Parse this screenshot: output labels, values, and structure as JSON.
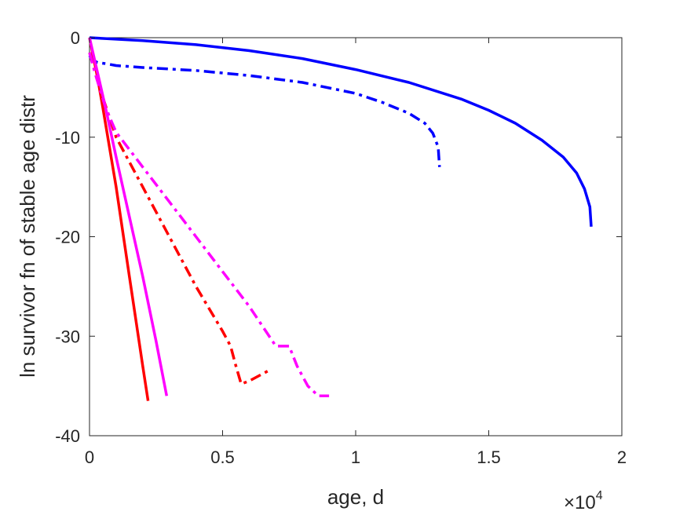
{
  "chart_data": {
    "type": "line",
    "title": "",
    "xlabel": "age, d",
    "ylabel": "ln survivor fn of stable age distr",
    "x_exponent_label": {
      "base": "×10",
      "exponent": "4"
    },
    "xlim": [
      0,
      20000
    ],
    "ylim": [
      -40,
      0
    ],
    "xticks": [
      0,
      5000,
      10000,
      15000,
      20000
    ],
    "xtick_labels": [
      "0",
      "0.5",
      "1",
      "1.5",
      "2"
    ],
    "yticks": [
      0,
      -10,
      -20,
      -30,
      -40
    ],
    "ytick_labels": [
      "0",
      "-10",
      "-20",
      "-30",
      "-40"
    ],
    "grid": false,
    "legend": "none",
    "series": [
      {
        "color": "#0000ff",
        "dash": "solid",
        "x": [
          0,
          2000,
          4000,
          6000,
          8000,
          10000,
          12000,
          14000,
          15000,
          16000,
          17000,
          17800,
          18300,
          18600,
          18800,
          18850
        ],
        "y": [
          0,
          -0.3,
          -0.7,
          -1.3,
          -2.1,
          -3.2,
          -4.5,
          -6.2,
          -7.3,
          -8.6,
          -10.3,
          -12.0,
          -13.6,
          -15.2,
          -17.0,
          -19.0
        ]
      },
      {
        "color": "#0000ff",
        "dash": "dashdot",
        "x": [
          0,
          100,
          300,
          600,
          1000,
          2000,
          4000,
          6000,
          8000,
          10000,
          11000,
          12000,
          12600,
          12900,
          13100,
          13150
        ],
        "y": [
          -1.8,
          -2.2,
          -2.5,
          -2.6,
          -2.8,
          -3.0,
          -3.3,
          -3.8,
          -4.5,
          -5.6,
          -6.5,
          -7.6,
          -8.6,
          -9.6,
          -11.0,
          -13.0
        ]
      },
      {
        "color": "#ff0000",
        "dash": "solid",
        "x": [
          0,
          300,
          500,
          1000,
          1500,
          2000,
          2200
        ],
        "y": [
          0,
          -4.0,
          -7.0,
          -15.0,
          -24.0,
          -33.0,
          -36.5
        ]
      },
      {
        "color": "#ff0000",
        "dash": "dashdot",
        "x": [
          0,
          200,
          500,
          1000,
          2000,
          3000,
          4000,
          5000,
          5300,
          5500,
          5700,
          6000,
          6700
        ],
        "y": [
          -1.5,
          -3.0,
          -6.0,
          -10.0,
          -15.0,
          -20.0,
          -25.0,
          -29.5,
          -31.0,
          -33.0,
          -34.8,
          -34.5,
          -33.5
        ]
      },
      {
        "color": "#ff00ff",
        "dash": "solid",
        "x": [
          0,
          300,
          600,
          1000,
          1500,
          2000,
          2500,
          2900
        ],
        "y": [
          0,
          -3.5,
          -7.0,
          -12.0,
          -18.0,
          -24.0,
          -30.5,
          -36.0
        ]
      },
      {
        "color": "#ff00ff",
        "dash": "dashdot",
        "x": [
          0,
          200,
          600,
          1000,
          2000,
          3000,
          4000,
          5000,
          6000,
          6500,
          7000,
          7500,
          7800,
          8200,
          8600,
          9000
        ],
        "y": [
          -1.5,
          -3.5,
          -7.0,
          -9.5,
          -13.0,
          -16.5,
          -20.0,
          -23.5,
          -27.0,
          -29.0,
          -31.0,
          -31.0,
          -33.0,
          -35.0,
          -36.0,
          -36.0
        ]
      }
    ]
  }
}
